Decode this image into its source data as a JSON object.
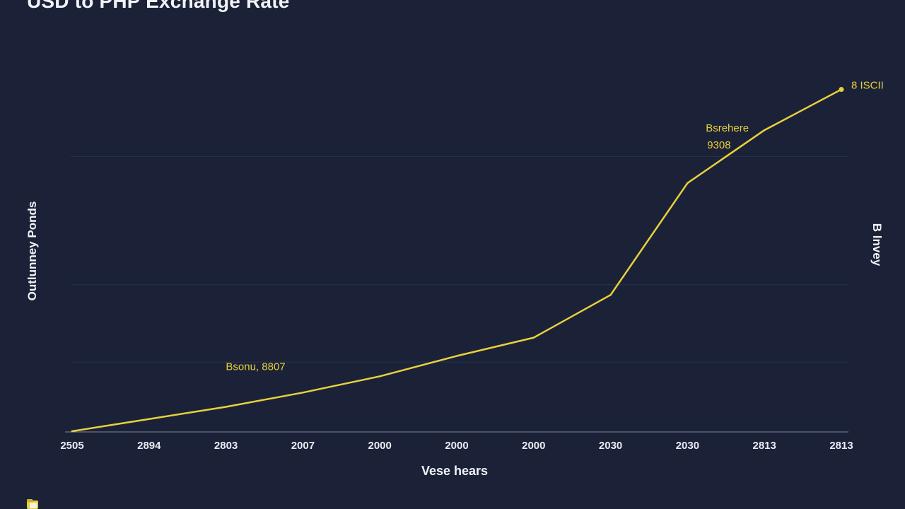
{
  "chart_data": {
    "type": "line",
    "title": "USD to PHP Exchange Rate",
    "xlabel": "Vese hears",
    "ylabel": "Outlunney Ponds",
    "ylabel_right": "B lnvey",
    "categories": [
      "2505",
      "2894",
      "2803",
      "2007",
      "2000",
      "2000",
      "2000",
      "2030",
      "2030",
      "2813",
      "2813"
    ],
    "series": [
      {
        "values": [
          0,
          6,
          12,
          19,
          27,
          37,
          46,
          67,
          122,
          148,
          168
        ]
      }
    ],
    "ylim": [
      0,
      180
    ],
    "grid": true,
    "color": "#e8d13c",
    "annotations": [
      {
        "text": "8 ISCII",
        "index": 10
      },
      {
        "text": "Bsrehere",
        "index": 9
      },
      {
        "text": "9308",
        "index": 9
      },
      {
        "text": "Bsonu, 8807",
        "index": 3
      }
    ]
  },
  "icons": {
    "corner": "folder-icon"
  }
}
